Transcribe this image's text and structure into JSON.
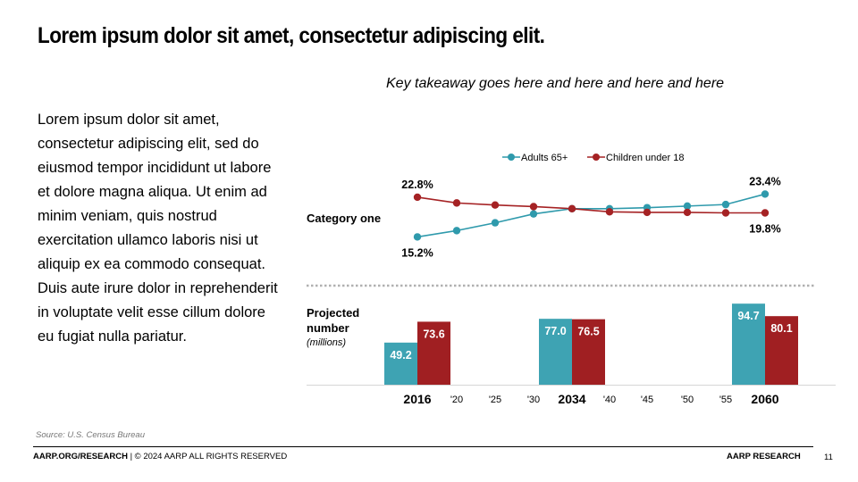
{
  "slide": {
    "title": "Lorem ipsum dolor sit amet, consectetur adipiscing elit.",
    "body": "Lorem ipsum dolor sit amet, consectetur adipiscing elit, sed do eiusmod tempor incididunt ut labore et dolore magna aliqua. Ut enim ad minim veniam, quis nostrud exercitation ullamco laboris nisi ut aliquip ex ea commodo consequat. Duis aute irure dolor in reprehenderit in voluptate velit esse cillum dolore eu fugiat nulla pariatur.",
    "takeaway": "Key takeaway goes here and here and here and here",
    "source": "Source: U.S. Census Bureau",
    "footer_left_bold": "AARP.ORG/RESEARCH",
    "footer_left_rest": " | © 2024 AARP ALL RIGHTS RESERVED",
    "footer_right": "AARP RESEARCH",
    "page_number": "11"
  },
  "colors": {
    "adults": "#2f9aac",
    "children": "#a52224",
    "adults_bar": "#3ea3b3",
    "children_bar": "#a01f22"
  },
  "chart_data": [
    {
      "type": "line",
      "category_label": "Category one",
      "x": [
        "2016",
        "'20",
        "'25",
        "'30",
        "2034",
        "'40",
        "'45",
        "'50",
        "'55",
        "2060"
      ],
      "series": [
        {
          "name": "Adults 65+",
          "values": [
            15.2,
            16.4,
            17.9,
            19.6,
            20.6,
            20.6,
            20.8,
            21.1,
            21.4,
            23.4
          ]
        },
        {
          "name": "Children under 18",
          "values": [
            22.8,
            21.7,
            21.3,
            21.0,
            20.6,
            20.0,
            19.9,
            19.9,
            19.8,
            19.8
          ]
        }
      ],
      "point_labels": [
        {
          "series": 0,
          "index": 0,
          "text": "15.2%"
        },
        {
          "series": 1,
          "index": 0,
          "text": "22.8%"
        },
        {
          "series": 0,
          "index": 9,
          "text": "23.4%"
        },
        {
          "series": 1,
          "index": 9,
          "text": "19.8%"
        }
      ],
      "legend": "top-center"
    },
    {
      "type": "bar",
      "category_label": "Projected number",
      "category_sublabel": "(millions)",
      "categories": [
        "2016",
        "'20",
        "'25",
        "'30",
        "2034",
        "'40",
        "'45",
        "'50",
        "'55",
        "2060"
      ],
      "series": [
        {
          "name": "Adults 65+",
          "values": [
            49.2,
            null,
            null,
            null,
            77.0,
            null,
            null,
            null,
            null,
            94.7
          ],
          "labels": [
            "49.2",
            "",
            "",
            "",
            "77.0",
            "",
            "",
            "",
            "",
            "94.7"
          ]
        },
        {
          "name": "Children under 18",
          "values": [
            73.6,
            null,
            null,
            null,
            76.5,
            null,
            null,
            null,
            null,
            80.1
          ],
          "labels": [
            "73.6",
            "",
            "",
            "",
            "76.5",
            "",
            "",
            "",
            "",
            "80.1"
          ]
        }
      ],
      "bold_ticks": [
        "2016",
        "2034",
        "2060"
      ]
    }
  ]
}
